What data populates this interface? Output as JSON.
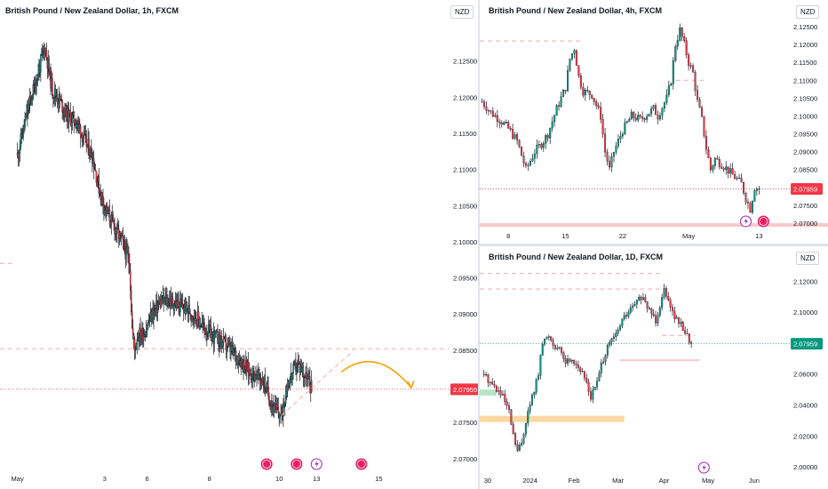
{
  "colors": {
    "up": "#089981",
    "down": "#f23645",
    "wick": "#131722",
    "axis": "#131722",
    "price_tag": "#f23645",
    "price_tag_green": "#089981",
    "dash": "#f7a9a9",
    "forecast": "#f7a000",
    "zone_orange": "#fad7a0",
    "zone_green": "#b7e4c7",
    "zone_red": "#f9c9cc",
    "event": "#e91e63",
    "lightning": "#9c27b0"
  },
  "chart_data": [
    {
      "id": "h1",
      "type": "candlestick",
      "title": "British Pound / New Zealand Dollar, 1h, FXCM",
      "currency": "NZD",
      "price_label": "2.07959",
      "ylim": [
        2.0685,
        2.13
      ],
      "y_ticks": [
        "2.12500",
        "2.12000",
        "2.11500",
        "2.11000",
        "2.10500",
        "2.10000",
        "2.09500",
        "2.09000",
        "2.08500",
        "2.08000",
        "2.07500",
        "2.07000"
      ],
      "y_tick_values": [
        2.125,
        2.12,
        2.115,
        2.11,
        2.105,
        2.1,
        2.095,
        2.09,
        2.085,
        2.08,
        2.075,
        2.07
      ],
      "x_ticks": [
        "May",
        "3",
        "6",
        "8",
        "10",
        "13",
        "15"
      ],
      "x_tick_pos": [
        0,
        35,
        52,
        77,
        105,
        120,
        145
      ],
      "xlim": [
        -7,
        173
      ],
      "path": [
        [
          0,
          2.112
        ],
        [
          4,
          2.118
        ],
        [
          8,
          2.123
        ],
        [
          11,
          2.127
        ],
        [
          14,
          2.121
        ],
        [
          17,
          2.1195
        ],
        [
          20,
          2.1175
        ],
        [
          24,
          2.1165
        ],
        [
          27,
          2.114
        ],
        [
          30,
          2.112
        ],
        [
          33,
          2.107
        ],
        [
          36,
          2.104
        ],
        [
          39,
          2.102
        ],
        [
          42,
          2.1
        ],
        [
          45,
          2.097
        ],
        [
          46,
          2.088
        ],
        [
          47,
          2.085
        ],
        [
          48,
          2.087
        ],
        [
          51,
          2.0875
        ],
        [
          54,
          2.09
        ],
        [
          57,
          2.0915
        ],
        [
          60,
          2.092
        ],
        [
          63,
          2.0915
        ],
        [
          66,
          2.091
        ],
        [
          69,
          2.0905
        ],
        [
          72,
          2.0895
        ],
        [
          75,
          2.088
        ],
        [
          78,
          2.087
        ],
        [
          81,
          2.0865
        ],
        [
          84,
          2.0855
        ],
        [
          87,
          2.0845
        ],
        [
          90,
          2.0835
        ],
        [
          93,
          2.082
        ],
        [
          96,
          2.0815
        ],
        [
          99,
          2.0805
        ],
        [
          101,
          2.0785
        ],
        [
          104,
          2.0765
        ],
        [
          106,
          2.076
        ],
        [
          108,
          2.08
        ],
        [
          110,
          2.0815
        ],
        [
          112,
          2.083
        ],
        [
          114,
          2.0825
        ],
        [
          116,
          2.081
        ],
        [
          118,
          2.08
        ]
      ],
      "hlines": [
        {
          "y": 2.0852,
          "style": "dash",
          "from": -7,
          "to": 173
        },
        {
          "y": 2.0796,
          "style": "dot",
          "from": -7,
          "to": 173
        },
        {
          "y": 2.097,
          "style": "dash",
          "from": -7,
          "to": -2
        }
      ],
      "events": [
        {
          "x": 100,
          "type": "event"
        },
        {
          "x": 112,
          "type": "event"
        },
        {
          "x": 120,
          "type": "lightning"
        },
        {
          "x": 138,
          "type": "event"
        }
      ],
      "extras": {
        "trend_from": [
          106,
          2.076
        ],
        "trend_to": [
          135,
          2.085
        ],
        "forecast_from": [
          130,
          2.082
        ],
        "forecast_to": [
          158,
          2.0798
        ]
      }
    },
    {
      "id": "h4",
      "type": "candlestick",
      "title": "British Pound / New Zealand Dollar, 4h, FXCM",
      "currency": "NZD",
      "price_label": "2.07959",
      "ylim": [
        2.069,
        2.127
      ],
      "y_ticks": [
        "2.12500",
        "2.12000",
        "2.11500",
        "2.11000",
        "2.10500",
        "2.10000",
        "2.09500",
        "2.09000",
        "2.08500",
        "2.08000",
        "2.07500",
        "2.07000"
      ],
      "y_tick_values": [
        2.125,
        2.12,
        2.115,
        2.11,
        2.105,
        2.1,
        2.095,
        2.09,
        2.085,
        2.08,
        2.075,
        2.07
      ],
      "x_ticks": [
        "8",
        "15",
        "22",
        "May",
        "13"
      ],
      "x_tick_pos": [
        6,
        19,
        32,
        47,
        63
      ],
      "xlim": [
        -0.5,
        70
      ],
      "path": [
        [
          0,
          2.104
        ],
        [
          2,
          2.101
        ],
        [
          4,
          2.099
        ],
        [
          6,
          2.0965
        ],
        [
          8,
          2.093
        ],
        [
          10,
          2.085
        ],
        [
          12,
          2.09
        ],
        [
          14,
          2.093
        ],
        [
          15,
          2.095
        ],
        [
          17,
          2.102
        ],
        [
          19,
          2.108
        ],
        [
          20,
          2.116
        ],
        [
          21,
          2.119
        ],
        [
          22,
          2.111
        ],
        [
          23,
          2.107
        ],
        [
          25,
          2.106
        ],
        [
          27,
          2.1
        ],
        [
          28,
          2.09
        ],
        [
          29,
          2.085
        ],
        [
          30,
          2.09
        ],
        [
          32,
          2.096
        ],
        [
          34,
          2.1
        ],
        [
          36,
          2.099
        ],
        [
          37,
          2.1
        ],
        [
          39,
          2.102
        ],
        [
          40,
          2.1
        ],
        [
          42,
          2.105
        ],
        [
          43,
          2.11
        ],
        [
          44,
          2.12
        ],
        [
          45,
          2.124
        ],
        [
          46,
          2.12
        ],
        [
          47,
          2.115
        ],
        [
          48,
          2.112
        ],
        [
          49,
          2.104
        ],
        [
          50,
          2.099
        ],
        [
          51,
          2.091
        ],
        [
          52,
          2.085
        ],
        [
          53,
          2.088
        ],
        [
          55,
          2.086
        ],
        [
          57,
          2.0835
        ],
        [
          59,
          2.081
        ],
        [
          60,
          2.077
        ],
        [
          61,
          2.074
        ],
        [
          62,
          2.08
        ],
        [
          63,
          2.0796
        ]
      ],
      "hlines": [
        {
          "y": 2.121,
          "style": "dash",
          "from": -0.5,
          "to": 23
        },
        {
          "y": 2.11,
          "style": "dash",
          "from": 44,
          "to": 51
        },
        {
          "y": 2.0796,
          "style": "dot",
          "from": -0.5,
          "to": 70
        }
      ],
      "events": [
        {
          "x": 60,
          "type": "lightning"
        },
        {
          "x": 64,
          "type": "event"
        }
      ],
      "extras": {
        "zone_red": [
          2.07,
          2.069
        ]
      }
    },
    {
      "id": "d1",
      "type": "candlestick",
      "title": "British Pound / New Zealand Dollar, 1D, FXCM",
      "currency": "NZD",
      "price_label": "2.07959",
      "ylim": [
        1.996,
        2.13
      ],
      "y_ticks": [
        "2.12000",
        "2.10000",
        "2.08000",
        "2.06000",
        "2.04000",
        "2.02000",
        "2.00000"
      ],
      "y_tick_values": [
        2.12,
        2.1,
        2.08,
        2.06,
        2.04,
        2.02,
        2.0
      ],
      "x_ticks": [
        "30",
        "2024",
        "Feb",
        "Mar",
        "Apr",
        "May",
        "Jun"
      ],
      "x_tick_pos": [
        0,
        22,
        43,
        64,
        86,
        107,
        129
      ],
      "xlim": [
        -2,
        146
      ],
      "path": [
        [
          0,
          2.06
        ],
        [
          3,
          2.055
        ],
        [
          6,
          2.05
        ],
        [
          9,
          2.045
        ],
        [
          12,
          2.035
        ],
        [
          14,
          2.02
        ],
        [
          16,
          2.01
        ],
        [
          18,
          2.015
        ],
        [
          20,
          2.03
        ],
        [
          23,
          2.045
        ],
        [
          26,
          2.06
        ],
        [
          28,
          2.08
        ],
        [
          31,
          2.085
        ],
        [
          33,
          2.08
        ],
        [
          36,
          2.075
        ],
        [
          39,
          2.068
        ],
        [
          42,
          2.07
        ],
        [
          45,
          2.065
        ],
        [
          47,
          2.06
        ],
        [
          49,
          2.055
        ],
        [
          51,
          2.045
        ],
        [
          54,
          2.055
        ],
        [
          57,
          2.07
        ],
        [
          60,
          2.08
        ],
        [
          63,
          2.085
        ],
        [
          66,
          2.095
        ],
        [
          69,
          2.1
        ],
        [
          72,
          2.105
        ],
        [
          75,
          2.11
        ],
        [
          77,
          2.105
        ],
        [
          80,
          2.1
        ],
        [
          82,
          2.095
        ],
        [
          84,
          2.105
        ],
        [
          86,
          2.115
        ],
        [
          88,
          2.11
        ],
        [
          90,
          2.1
        ],
        [
          92,
          2.095
        ],
        [
          95,
          2.09
        ],
        [
          97,
          2.085
        ],
        [
          99,
          2.0796
        ]
      ],
      "hlines": [
        {
          "y": 2.125,
          "style": "dash",
          "from": -2,
          "to": 86
        },
        {
          "y": 2.115,
          "style": "dash",
          "from": -2,
          "to": 86
        },
        {
          "y": 2.085,
          "style": "dash",
          "from": 85,
          "to": 101
        },
        {
          "y": 2.069,
          "style": "solid",
          "from": 65,
          "to": 103
        },
        {
          "y": 2.0796,
          "style": "dotgreen",
          "from": -2,
          "to": 146
        }
      ],
      "events": [
        {
          "x": 105,
          "type": "lightning"
        }
      ],
      "extras": {
        "zone_orange": [
          2.033,
          2.029,
          -2,
          67
        ],
        "zone_green": [
          2.05,
          2.046,
          -2,
          6
        ]
      }
    }
  ]
}
